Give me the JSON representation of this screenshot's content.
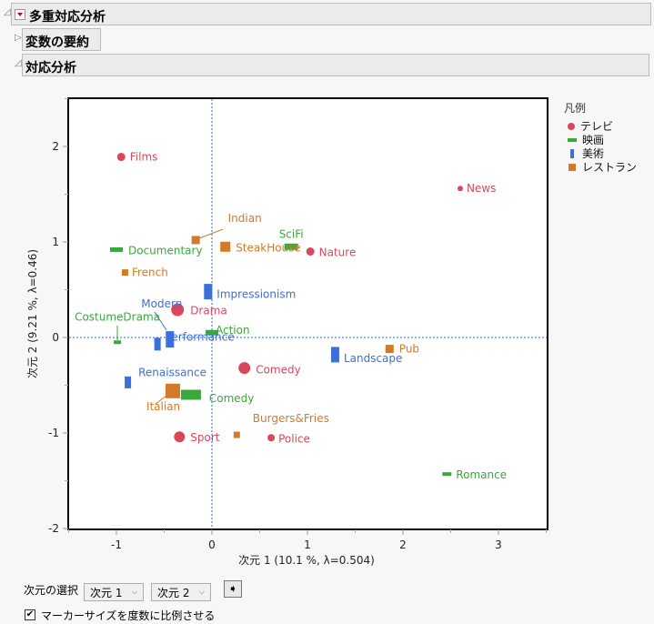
{
  "outline": {
    "main_title": "多重対応分析",
    "summary_title": "変数の要約",
    "ca_title": "対応分析"
  },
  "legend": {
    "title": "凡例",
    "items": [
      {
        "label": "テレビ",
        "shape": "circle",
        "color": "#d9475a"
      },
      {
        "label": "映画",
        "shape": "hbar",
        "color": "#3aa83a"
      },
      {
        "label": "美術",
        "shape": "vbar",
        "color": "#3d6fd9"
      },
      {
        "label": "レストラン",
        "shape": "square",
        "color": "#d27a28"
      }
    ]
  },
  "controls": {
    "dim_select_label": "次元の選択",
    "dim_x": "次元 1",
    "dim_y": "次元 2",
    "go_icon": "arrow-right-icon",
    "proportional_label": "マーカーサイズを度数に比例させる",
    "proportional_checked": true
  },
  "chart_data": {
    "type": "scatter",
    "title": "",
    "xlabel": "次元 1  (10.1 %, λ=0.504)",
    "ylabel": "次元 2  (9.21 %, λ=0.46)",
    "xlim": [
      -1.5,
      3.5
    ],
    "ylim": [
      -2,
      2.5
    ],
    "xticks": [
      -1,
      0,
      1,
      2,
      3
    ],
    "yticks": [
      -2,
      -1,
      0,
      1,
      2
    ],
    "reference_lines": {
      "x": 0,
      "y": 0
    },
    "legend_position": "right",
    "series": [
      {
        "name": "テレビ",
        "color": "#d9475a",
        "shape": "circle",
        "points": [
          {
            "label": "Films",
            "x": -0.95,
            "y": 1.89,
            "size": 4.5
          },
          {
            "label": "News",
            "x": 2.6,
            "y": 1.56,
            "size": 3
          },
          {
            "label": "Nature",
            "x": 1.03,
            "y": 0.9,
            "size": 4.5
          },
          {
            "label": "Drama",
            "x": -0.36,
            "y": 0.29,
            "size": 7
          },
          {
            "label": "Comedy",
            "x": 0.34,
            "y": -0.32,
            "size": 6.5
          },
          {
            "label": "Police",
            "x": 0.62,
            "y": -1.05,
            "size": 4
          },
          {
            "label": "Sport",
            "x": -0.34,
            "y": -1.04,
            "size": 6
          }
        ]
      },
      {
        "name": "映画",
        "color": "#3aa83a",
        "shape": "hbar",
        "points": [
          {
            "label": "Documentary",
            "x": -1.0,
            "y": 0.92,
            "w": 14,
            "h": 5
          },
          {
            "label": "SciFi",
            "x": 0.83,
            "y": 0.95,
            "w": 15,
            "h": 7
          },
          {
            "label": "Action",
            "x": 0.0,
            "y": 0.05,
            "w": 14,
            "h": 6
          },
          {
            "label": "CostumeDrama",
            "x": -0.99,
            "y": -0.05,
            "w": 8,
            "h": 4
          },
          {
            "label": "Comedy",
            "x": -0.22,
            "y": -0.6,
            "w": 22,
            "h": 11
          },
          {
            "label": "Romance",
            "x": 2.46,
            "y": -1.43,
            "w": 10,
            "h": 4
          }
        ]
      },
      {
        "name": "美術",
        "color": "#3d6fd9",
        "shape": "vbar",
        "points": [
          {
            "label": "Impressionism",
            "x": -0.04,
            "y": 0.48,
            "w": 9,
            "h": 17
          },
          {
            "label": "Modern",
            "x": -0.44,
            "y": -0.02,
            "w": 9,
            "h": 18
          },
          {
            "label": "Performance",
            "x": -0.57,
            "y": -0.07,
            "w": 7,
            "h": 14
          },
          {
            "label": "Landscape",
            "x": 1.29,
            "y": -0.18,
            "w": 9,
            "h": 17
          },
          {
            "label": "Renaissance",
            "x": -0.88,
            "y": -0.47,
            "w": 7,
            "h": 13
          }
        ]
      },
      {
        "name": "レストラン",
        "color": "#d27a28",
        "shape": "square",
        "points": [
          {
            "label": "Indian",
            "x": -0.17,
            "y": 1.02,
            "size": 9
          },
          {
            "label": "SteakHouse",
            "x": 0.14,
            "y": 0.95,
            "size": 11
          },
          {
            "label": "French",
            "x": -0.91,
            "y": 0.68,
            "size": 7
          },
          {
            "label": "Italian",
            "x": -0.41,
            "y": -0.56,
            "size": 16
          },
          {
            "label": "Pub",
            "x": 1.86,
            "y": -0.12,
            "size": 9
          },
          {
            "label": "Burgers&Fries",
            "x": 0.26,
            "y": -1.02,
            "size": 7
          }
        ]
      }
    ]
  }
}
